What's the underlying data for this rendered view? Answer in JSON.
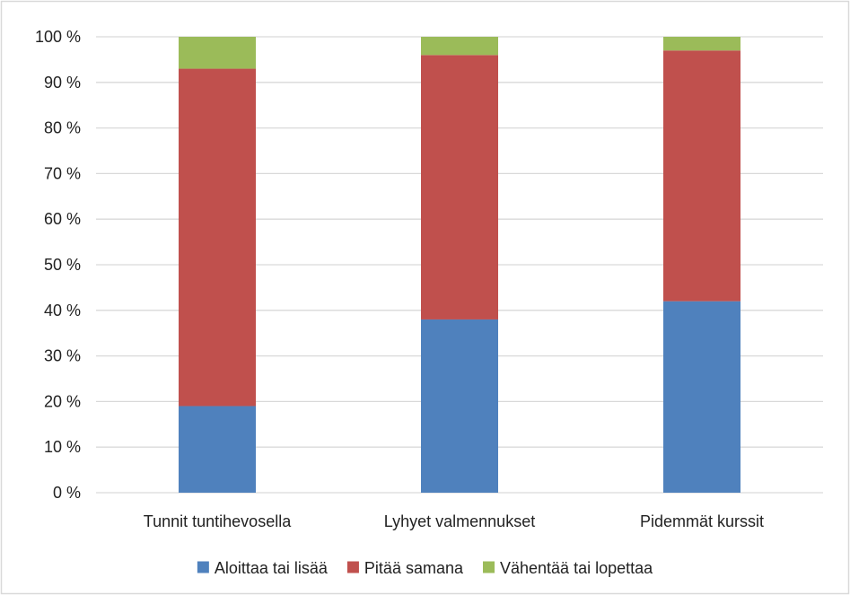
{
  "chart_data": {
    "type": "bar",
    "stacked": true,
    "categories": [
      "Tunnit tuntihevosella",
      "Lyhyet valmennukset",
      "Pidemmät kurssit"
    ],
    "series": [
      {
        "name": "Aloittaa tai lisää",
        "values": [
          19,
          38,
          42
        ],
        "color": "#4f81bd"
      },
      {
        "name": "Pitää samana",
        "values": [
          74,
          58,
          55
        ],
        "color": "#c0504d"
      },
      {
        "name": "Vähentää tai lopettaa",
        "values": [
          7,
          4,
          3
        ],
        "color": "#9bbb59"
      }
    ],
    "yticks": [
      "0 %",
      "10 %",
      "20 %",
      "30 %",
      "40 %",
      "50 %",
      "60 %",
      "70 %",
      "80 %",
      "90 %",
      "100 %"
    ],
    "ylim": [
      0,
      100
    ],
    "grid": true,
    "legend_position": "bottom",
    "gridline_color": "#d9d9d9",
    "border_color": "#d9d9d9"
  }
}
